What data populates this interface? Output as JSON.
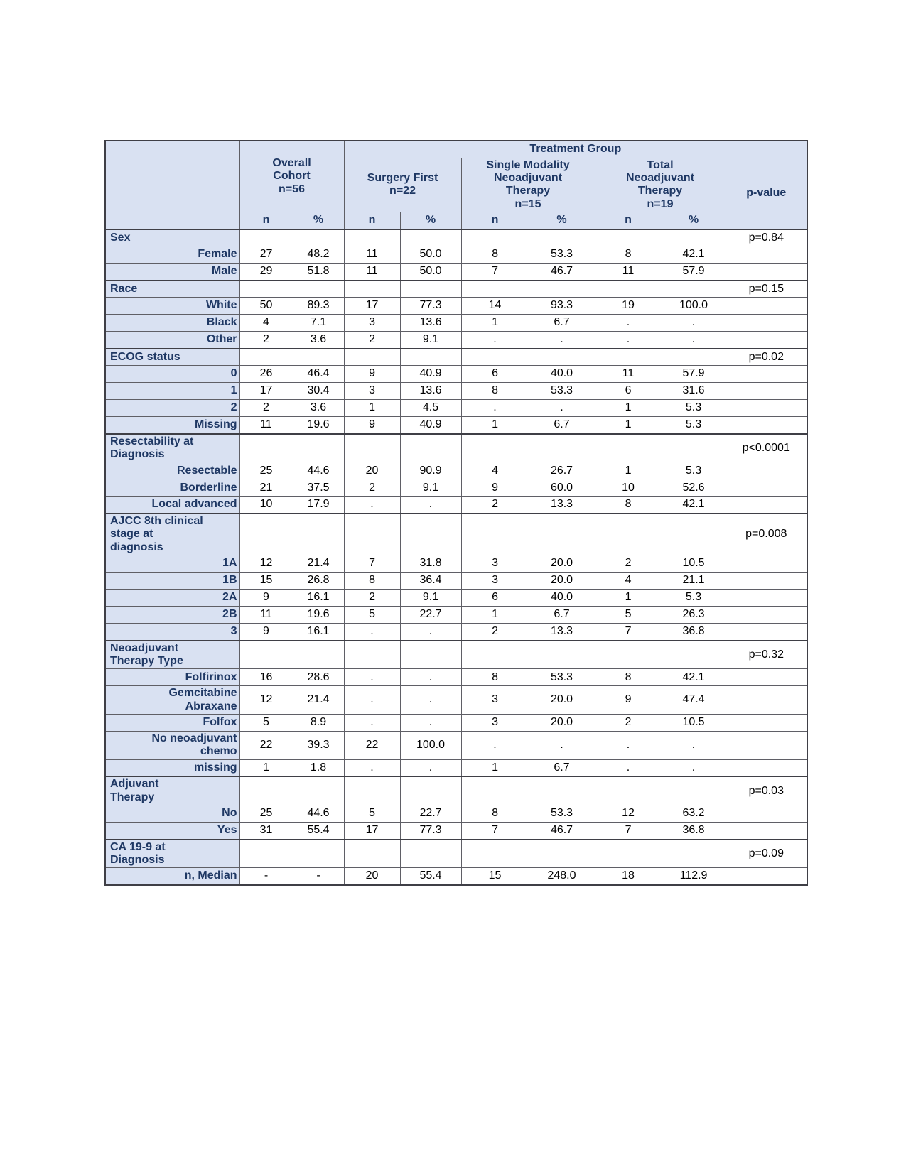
{
  "colors": {
    "header_bg": "#d9e1f2",
    "header_text": "#1f3864",
    "border_dark": "#3f3f46",
    "border_light": "#5f5f66",
    "data_text": "#000000"
  },
  "table": {
    "header": {
      "treatment_group": "Treatment Group",
      "overall": "Overall\nCohort\nn=56",
      "groups": [
        "Surgery First\nn=22",
        "Single Modality\nNeoadjuvant\nTherapy\nn=15",
        "Total\nNeoadjuvant\nTherapy\nn=19"
      ],
      "pvalue": "p-value",
      "subheaders": [
        "n",
        "%",
        "n",
        "%",
        "n",
        "%",
        "n",
        "%"
      ]
    },
    "rows": [
      {
        "type": "group",
        "label": "Sex",
        "cells": [
          "",
          "",
          "",
          "",
          "",
          "",
          "",
          ""
        ],
        "pvalue": "p=0.84"
      },
      {
        "type": "item",
        "label": "Female",
        "cells": [
          "27",
          "48.2",
          "11",
          "50.0",
          "8",
          "53.3",
          "8",
          "42.1"
        ],
        "pvalue": ""
      },
      {
        "type": "item",
        "label": "Male",
        "cells": [
          "29",
          "51.8",
          "11",
          "50.0",
          "7",
          "46.7",
          "11",
          "57.9"
        ],
        "pvalue": ""
      },
      {
        "type": "group",
        "label": "Race",
        "cells": [
          "",
          "",
          "",
          "",
          "",
          "",
          "",
          ""
        ],
        "pvalue": "p=0.15"
      },
      {
        "type": "item",
        "label": "White",
        "cells": [
          "50",
          "89.3",
          "17",
          "77.3",
          "14",
          "93.3",
          "19",
          "100.0"
        ],
        "pvalue": ""
      },
      {
        "type": "item",
        "label": "Black",
        "cells": [
          "4",
          "7.1",
          "3",
          "13.6",
          "1",
          "6.7",
          ".",
          "."
        ],
        "pvalue": ""
      },
      {
        "type": "item",
        "label": "Other",
        "cells": [
          "2",
          "3.6",
          "2",
          "9.1",
          ".",
          ".",
          ".",
          "."
        ],
        "pvalue": ""
      },
      {
        "type": "group",
        "label": "ECOG status",
        "cells": [
          "",
          "",
          "",
          "",
          "",
          "",
          "",
          ""
        ],
        "pvalue": "p=0.02"
      },
      {
        "type": "item",
        "label": "0",
        "cells": [
          "26",
          "46.4",
          "9",
          "40.9",
          "6",
          "40.0",
          "11",
          "57.9"
        ],
        "pvalue": ""
      },
      {
        "type": "item",
        "label": "1",
        "cells": [
          "17",
          "30.4",
          "3",
          "13.6",
          "8",
          "53.3",
          "6",
          "31.6"
        ],
        "pvalue": ""
      },
      {
        "type": "item",
        "label": "2",
        "cells": [
          "2",
          "3.6",
          "1",
          "4.5",
          ".",
          ".",
          "1",
          "5.3"
        ],
        "pvalue": ""
      },
      {
        "type": "item",
        "label": "Missing",
        "cells": [
          "11",
          "19.6",
          "9",
          "40.9",
          "1",
          "6.7",
          "1",
          "5.3"
        ],
        "pvalue": ""
      },
      {
        "type": "group",
        "label": "Resectability at\nDiagnosis",
        "cells": [
          "",
          "",
          "",
          "",
          "",
          "",
          "",
          ""
        ],
        "pvalue": "p<0.0001"
      },
      {
        "type": "item",
        "label": "Resectable",
        "cells": [
          "25",
          "44.6",
          "20",
          "90.9",
          "4",
          "26.7",
          "1",
          "5.3"
        ],
        "pvalue": ""
      },
      {
        "type": "item",
        "label": "Borderline",
        "cells": [
          "21",
          "37.5",
          "2",
          "9.1",
          "9",
          "60.0",
          "10",
          "52.6"
        ],
        "pvalue": ""
      },
      {
        "type": "item",
        "label": "Local advanced",
        "cells": [
          "10",
          "17.9",
          ".",
          ".",
          "2",
          "13.3",
          "8",
          "42.1"
        ],
        "pvalue": ""
      },
      {
        "type": "group",
        "label": "AJCC 8th clinical\nstage at\ndiagnosis",
        "cells": [
          "",
          "",
          "",
          "",
          "",
          "",
          "",
          ""
        ],
        "pvalue": "p=0.008"
      },
      {
        "type": "item",
        "label": "1A",
        "cells": [
          "12",
          "21.4",
          "7",
          "31.8",
          "3",
          "20.0",
          "2",
          "10.5"
        ],
        "pvalue": ""
      },
      {
        "type": "item",
        "label": "1B",
        "cells": [
          "15",
          "26.8",
          "8",
          "36.4",
          "3",
          "20.0",
          "4",
          "21.1"
        ],
        "pvalue": ""
      },
      {
        "type": "item",
        "label": "2A",
        "cells": [
          "9",
          "16.1",
          "2",
          "9.1",
          "6",
          "40.0",
          "1",
          "5.3"
        ],
        "pvalue": ""
      },
      {
        "type": "item",
        "label": "2B",
        "cells": [
          "11",
          "19.6",
          "5",
          "22.7",
          "1",
          "6.7",
          "5",
          "26.3"
        ],
        "pvalue": ""
      },
      {
        "type": "item",
        "label": "3",
        "cells": [
          "9",
          "16.1",
          ".",
          ".",
          "2",
          "13.3",
          "7",
          "36.8"
        ],
        "pvalue": ""
      },
      {
        "type": "group",
        "label": "Neoadjuvant\nTherapy Type",
        "cells": [
          "",
          "",
          "",
          "",
          "",
          "",
          "",
          ""
        ],
        "pvalue": "p=0.32"
      },
      {
        "type": "item-tall",
        "label": "Folfirinox",
        "cells": [
          "16",
          "28.6",
          ".",
          ".",
          "8",
          "53.3",
          "8",
          "42.1"
        ],
        "pvalue": ""
      },
      {
        "type": "item-tall",
        "label": "Gemcitabine\nAbraxane",
        "cells": [
          "12",
          "21.4",
          ".",
          ".",
          "3",
          "20.0",
          "9",
          "47.4"
        ],
        "pvalue": ""
      },
      {
        "type": "item-tall",
        "label": "Folfox",
        "cells": [
          "5",
          "8.9",
          ".",
          ".",
          "3",
          "20.0",
          "2",
          "10.5"
        ],
        "pvalue": ""
      },
      {
        "type": "item-tall",
        "label": "No neoadjuvant\nchemo",
        "cells": [
          "22",
          "39.3",
          "22",
          "100.0",
          ".",
          ".",
          ".",
          "."
        ],
        "pvalue": ""
      },
      {
        "type": "item",
        "label": "missing",
        "cells": [
          "1",
          "1.8",
          ".",
          ".",
          "1",
          "6.7",
          ".",
          "."
        ],
        "pvalue": ""
      },
      {
        "type": "group",
        "label": "Adjuvant\nTherapy",
        "cells": [
          "",
          "",
          "",
          "",
          "",
          "",
          "",
          ""
        ],
        "pvalue": "p=0.03"
      },
      {
        "type": "item",
        "label": "No",
        "cells": [
          "25",
          "44.6",
          "5",
          "22.7",
          "8",
          "53.3",
          "12",
          "63.2"
        ],
        "pvalue": ""
      },
      {
        "type": "item",
        "label": "Yes",
        "cells": [
          "31",
          "55.4",
          "17",
          "77.3",
          "7",
          "46.7",
          "7",
          "36.8"
        ],
        "pvalue": ""
      },
      {
        "type": "group",
        "label": "CA 19-9 at\nDiagnosis",
        "cells": [
          "",
          "",
          "",
          "",
          "",
          "",
          "",
          ""
        ],
        "pvalue": "p=0.09"
      },
      {
        "type": "item",
        "label": "n, Median",
        "cells": [
          "-",
          "-",
          "20",
          "55.4",
          "15",
          "248.0",
          "18",
          "112.9"
        ],
        "pvalue": ""
      }
    ]
  }
}
